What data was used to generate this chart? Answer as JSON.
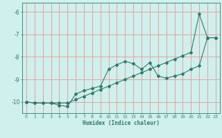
{
  "xlabel": "Humidex (Indice chaleur)",
  "x": [
    0,
    1,
    2,
    3,
    4,
    5,
    6,
    7,
    8,
    9,
    10,
    11,
    12,
    13,
    14,
    15,
    16,
    17,
    18,
    19,
    20,
    21,
    22,
    23
  ],
  "line1": [
    -10.0,
    -10.05,
    -10.05,
    -10.05,
    -10.15,
    -10.2,
    -9.65,
    -9.5,
    -9.4,
    -9.3,
    -8.55,
    -8.35,
    -8.2,
    -8.3,
    -8.55,
    -8.25,
    -8.85,
    -8.95,
    -8.85,
    -8.75,
    -8.55,
    -8.4,
    -7.15,
    -7.15
  ],
  "line2": [
    -10.0,
    -10.05,
    -10.05,
    -10.05,
    -10.05,
    -10.05,
    -9.9,
    -9.75,
    -9.6,
    -9.45,
    -9.3,
    -9.15,
    -9.0,
    -8.85,
    -8.7,
    -8.55,
    -8.4,
    -8.25,
    -8.1,
    -7.95,
    -7.8,
    -6.1,
    -7.15,
    -7.15
  ],
  "line_color": "#2d7a6a",
  "bg_color": "#cff0ec",
  "grid_color": "#e8a0a0",
  "tick_label_color": "#2d7a6a",
  "axis_color": "#2d7a6a",
  "ylim": [
    -10.5,
    -5.6
  ],
  "xlim": [
    -0.5,
    23.5
  ],
  "yticks": [
    -10,
    -9,
    -8,
    -7,
    -6
  ],
  "xticks": [
    0,
    1,
    2,
    3,
    4,
    5,
    6,
    7,
    8,
    9,
    10,
    11,
    12,
    13,
    14,
    15,
    16,
    17,
    18,
    19,
    20,
    21,
    22,
    23
  ]
}
